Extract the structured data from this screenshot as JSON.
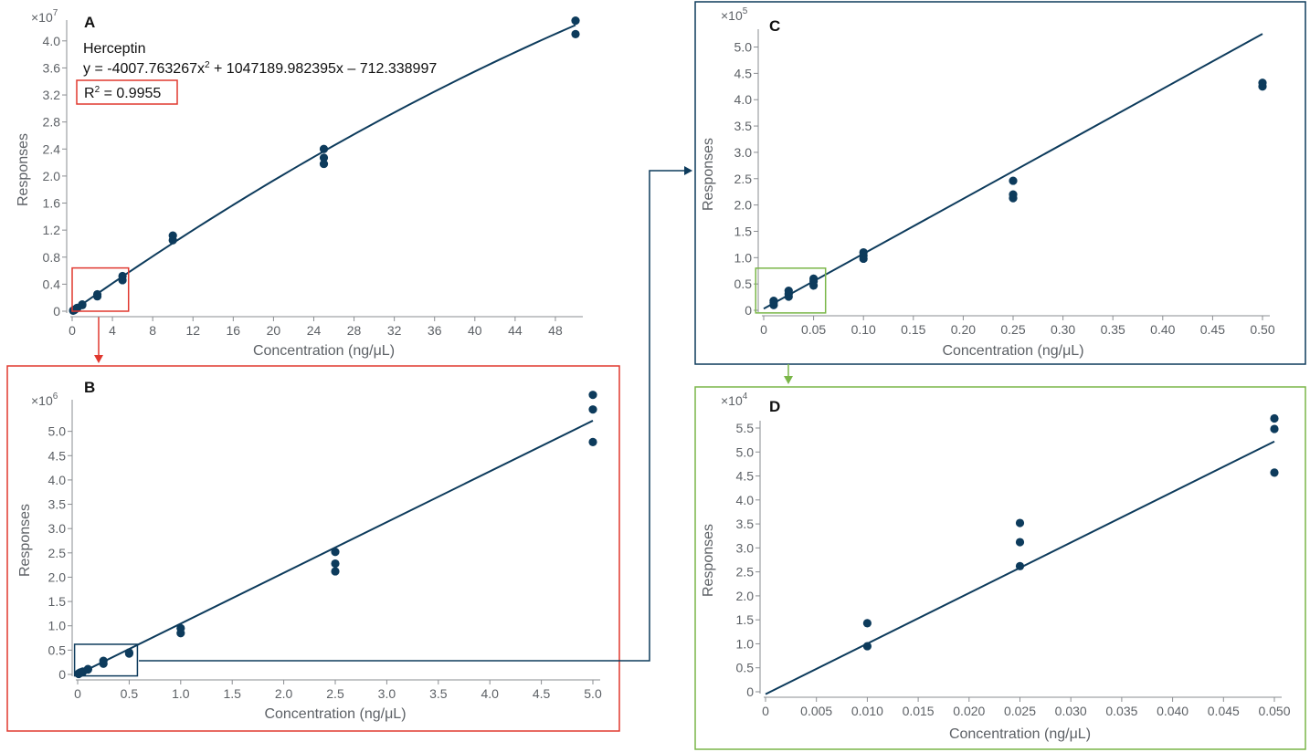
{
  "colors": {
    "series": "#0d3b5c",
    "highlight_red": "#e0382f",
    "highlight_green": "#7ab648",
    "highlight_navy": "#0d3b5c",
    "frame_navy": "#0d3b5c",
    "axis_text": "#5d6166"
  },
  "chart_data": [
    {
      "panel": "A",
      "type": "scatter",
      "multiplier": "×10",
      "multiplier_exp": "7",
      "xlabel": "Concentration (ng/μL)",
      "ylabel": "Responses",
      "xlim": [
        0,
        50
      ],
      "ylim": [
        0,
        4.2
      ],
      "x_ticks": [
        "0",
        "4",
        "8",
        "12",
        "16",
        "20",
        "24",
        "28",
        "32",
        "36",
        "40",
        "44",
        "48"
      ],
      "y_ticks": [
        "0",
        "0.4",
        "0.8",
        "1.2",
        "1.6",
        "2.0",
        "2.4",
        "2.8",
        "3.2",
        "3.6",
        "4.0"
      ],
      "annotation": {
        "name": "Herceptin",
        "equation": "y = -4007.763267x",
        "equation_exp": "2",
        "equation_rest": " + 1047189.982395x – 712.338997",
        "r2_label": "R",
        "r2_exp": "2",
        "r2_value": " = 0.9955"
      },
      "points": [
        [
          0.1,
          0.01
        ],
        [
          0.1,
          0.008
        ],
        [
          0.25,
          0.025
        ],
        [
          0.25,
          0.02
        ],
        [
          0.5,
          0.05
        ],
        [
          0.5,
          0.045
        ],
        [
          1,
          0.09
        ],
        [
          1,
          0.1
        ],
        [
          2.5,
          0.22
        ],
        [
          2.5,
          0.25
        ],
        [
          5,
          0.46
        ],
        [
          5,
          0.52
        ],
        [
          10,
          1.05
        ],
        [
          10,
          1.12
        ],
        [
          25,
          2.18
        ],
        [
          25,
          2.27
        ],
        [
          25,
          2.4
        ],
        [
          50,
          4.1
        ],
        [
          50,
          4.3
        ]
      ],
      "fit": {
        "a": -4007.763267,
        "b": 1047189.982395,
        "c": -712.338997,
        "scale": 10000000
      },
      "highlight": {
        "color": "red",
        "x": [
          0,
          5.6
        ],
        "y": [
          0,
          0.64
        ]
      }
    },
    {
      "panel": "B",
      "type": "scatter",
      "multiplier": "×10",
      "multiplier_exp": "6",
      "xlabel": "Concentration (ng/μL)",
      "ylabel": "Responses",
      "xlim": [
        0,
        5
      ],
      "ylim": [
        0,
        5.5
      ],
      "x_ticks": [
        "0",
        "0.5",
        "1.0",
        "1.5",
        "2.0",
        "2.5",
        "3.0",
        "3.5",
        "4.0",
        "4.5",
        "5.0"
      ],
      "y_ticks": [
        "0",
        "0.5",
        "1.0",
        "1.5",
        "2.0",
        "2.5",
        "3.0",
        "3.5",
        "4.0",
        "4.5",
        "5.0"
      ],
      "points": [
        [
          0.01,
          0.01
        ],
        [
          0.01,
          0.02
        ],
        [
          0.025,
          0.03
        ],
        [
          0.025,
          0.04
        ],
        [
          0.05,
          0.05
        ],
        [
          0.05,
          0.06
        ],
        [
          0.1,
          0.1
        ],
        [
          0.1,
          0.11
        ],
        [
          0.25,
          0.22
        ],
        [
          0.25,
          0.28
        ],
        [
          0.5,
          0.45
        ],
        [
          0.5,
          0.43
        ],
        [
          1,
          0.85
        ],
        [
          1,
          0.95
        ],
        [
          2.5,
          2.12
        ],
        [
          2.5,
          2.28
        ],
        [
          2.5,
          2.52
        ],
        [
          5,
          4.78
        ],
        [
          5,
          5.45
        ],
        [
          5,
          5.75
        ]
      ],
      "fit": {
        "x0": -0.02,
        "y0": -0.02,
        "x1": 5,
        "y1": 5.22
      },
      "highlight": {
        "color": "navy",
        "x": [
          -0.03,
          0.58
        ],
        "y": [
          -0.03,
          0.62
        ]
      }
    },
    {
      "panel": "C",
      "type": "scatter",
      "multiplier": "×10",
      "multiplier_exp": "5",
      "xlabel": "Concentration (ng/μL)",
      "ylabel": "Responses",
      "xlim": [
        0,
        0.5
      ],
      "ylim": [
        0,
        5.2
      ],
      "x_ticks": [
        "0",
        "0.05",
        "0.10",
        "0.15",
        "0.20",
        "0.25",
        "0.30",
        "0.35",
        "0.40",
        "0.45",
        "0.50"
      ],
      "y_ticks": [
        "0",
        "0.5",
        "1.0",
        "1.5",
        "2.0",
        "2.5",
        "3.0",
        "3.5",
        "4.0",
        "4.5",
        "5.0"
      ],
      "points": [
        [
          0.01,
          0.1
        ],
        [
          0.01,
          0.15
        ],
        [
          0.01,
          0.18
        ],
        [
          0.025,
          0.26
        ],
        [
          0.025,
          0.31
        ],
        [
          0.025,
          0.37
        ],
        [
          0.05,
          0.47
        ],
        [
          0.05,
          0.55
        ],
        [
          0.05,
          0.6
        ],
        [
          0.1,
          0.98
        ],
        [
          0.1,
          1.04
        ],
        [
          0.1,
          1.1
        ],
        [
          0.25,
          2.13
        ],
        [
          0.25,
          2.2
        ],
        [
          0.25,
          2.46
        ],
        [
          0.5,
          4.25
        ],
        [
          0.5,
          4.32
        ]
      ],
      "fit": {
        "x0": 0,
        "y0": 0.03,
        "x1": 0.5,
        "y1": 5.25
      },
      "highlight": {
        "color": "green",
        "x": [
          -0.008,
          0.062
        ],
        "y": [
          -0.05,
          0.8
        ]
      }
    },
    {
      "panel": "D",
      "type": "scatter",
      "multiplier": "×10",
      "multiplier_exp": "4",
      "xlabel": "Concentration (ng/μL)",
      "ylabel": "Responses",
      "xlim": [
        0,
        0.05
      ],
      "ylim": [
        0,
        5.5
      ],
      "x_ticks": [
        "0",
        "0.005",
        "0.010",
        "0.015",
        "0.020",
        "0.025",
        "0.030",
        "0.035",
        "0.040",
        "0.045",
        "0.050"
      ],
      "y_ticks": [
        "0",
        "0.5",
        "1.0",
        "1.5",
        "2.0",
        "2.5",
        "3.0",
        "3.5",
        "4.0",
        "4.5",
        "5.0",
        "5.5"
      ],
      "points": [
        [
          0.01,
          0.95
        ],
        [
          0.01,
          1.43
        ],
        [
          0.025,
          2.62
        ],
        [
          0.025,
          3.12
        ],
        [
          0.025,
          3.52
        ],
        [
          0.05,
          4.57
        ],
        [
          0.05,
          5.48
        ],
        [
          0.05,
          5.7
        ]
      ],
      "fit": {
        "x0": 0,
        "y0": -0.05,
        "x1": 0.05,
        "y1": 5.22
      }
    }
  ]
}
